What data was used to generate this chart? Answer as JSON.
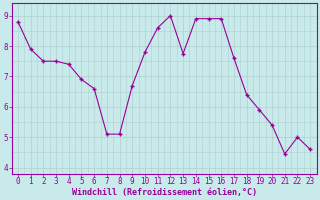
{
  "x": [
    0,
    1,
    2,
    3,
    4,
    5,
    6,
    7,
    8,
    9,
    10,
    11,
    12,
    13,
    14,
    15,
    16,
    17,
    18,
    19,
    20,
    21,
    22,
    23
  ],
  "y": [
    8.8,
    7.9,
    7.5,
    7.5,
    7.4,
    6.9,
    6.6,
    5.1,
    5.1,
    6.7,
    7.8,
    8.6,
    9.0,
    7.75,
    8.9,
    8.9,
    8.9,
    7.6,
    6.4,
    5.9,
    5.4,
    4.45,
    5.0,
    4.6
  ],
  "line_color": "#990099",
  "marker_color": "#990099",
  "bg_color": "#c8eaea",
  "grid_color": "#b0d0d0",
  "axis_label_color": "#990099",
  "tick_color": "#990099",
  "border_color": "#990099",
  "xlabel": "Windchill (Refroidissement éolien,°C)",
  "ylim": [
    3.8,
    9.4
  ],
  "xlim": [
    -0.5,
    23.5
  ],
  "yticks": [
    4,
    5,
    6,
    7,
    8,
    9
  ],
  "xticks": [
    0,
    1,
    2,
    3,
    4,
    5,
    6,
    7,
    8,
    9,
    10,
    11,
    12,
    13,
    14,
    15,
    16,
    17,
    18,
    19,
    20,
    21,
    22,
    23
  ],
  "tick_fontsize": 5.5,
  "xlabel_fontsize": 6.0
}
